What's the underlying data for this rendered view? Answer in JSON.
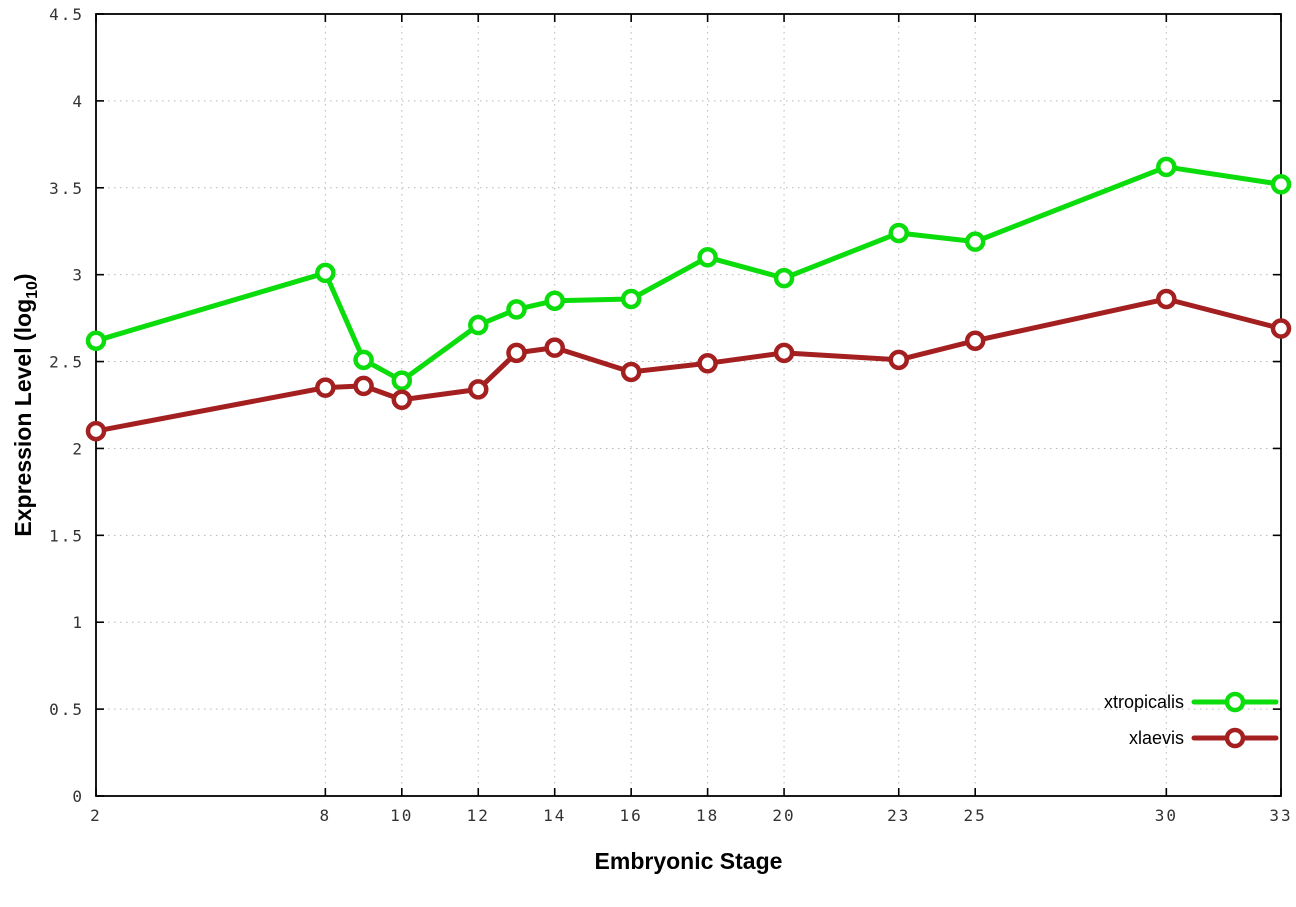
{
  "chart_data": {
    "type": "line",
    "title": "",
    "xlabel": "Embryonic Stage",
    "ylabel": "Expression Level (log10)",
    "ylabel_main": "Expression Level (log",
    "ylabel_sub": "10",
    "ylabel_close": ")",
    "x": [
      2,
      8,
      9,
      10,
      12,
      13,
      14,
      16,
      18,
      20,
      23,
      25,
      30,
      33
    ],
    "series": [
      {
        "name": "xtropicalis",
        "color": "#0bdc0b",
        "marker": "open-circle",
        "values": [
          2.62,
          3.01,
          2.51,
          2.39,
          2.71,
          2.8,
          2.85,
          2.86,
          3.1,
          2.98,
          3.24,
          3.19,
          3.62,
          3.52
        ]
      },
      {
        "name": "xlaevis",
        "color": "#a42020",
        "marker": "open-circle",
        "values": [
          2.1,
          2.35,
          2.36,
          2.28,
          2.34,
          2.55,
          2.58,
          2.44,
          2.49,
          2.55,
          2.51,
          2.62,
          2.86,
          2.69
        ]
      }
    ],
    "xticks": [
      2,
      8,
      10,
      12,
      14,
      16,
      18,
      20,
      23,
      25,
      30,
      33
    ],
    "yticks": [
      0,
      0.5,
      1,
      1.5,
      2,
      2.5,
      3,
      3.5,
      4,
      4.5
    ],
    "xlim": [
      2,
      33
    ],
    "ylim": [
      0,
      4.5
    ],
    "grid": true,
    "grid_style": "dotted",
    "legend_position": "bottom-right",
    "legend": [
      "xtropicalis",
      "xlaevis"
    ],
    "colors": {
      "background": "#ffffff",
      "border": "#000000",
      "grid": "#b8b8b8",
      "tick_text": "#333333"
    }
  }
}
